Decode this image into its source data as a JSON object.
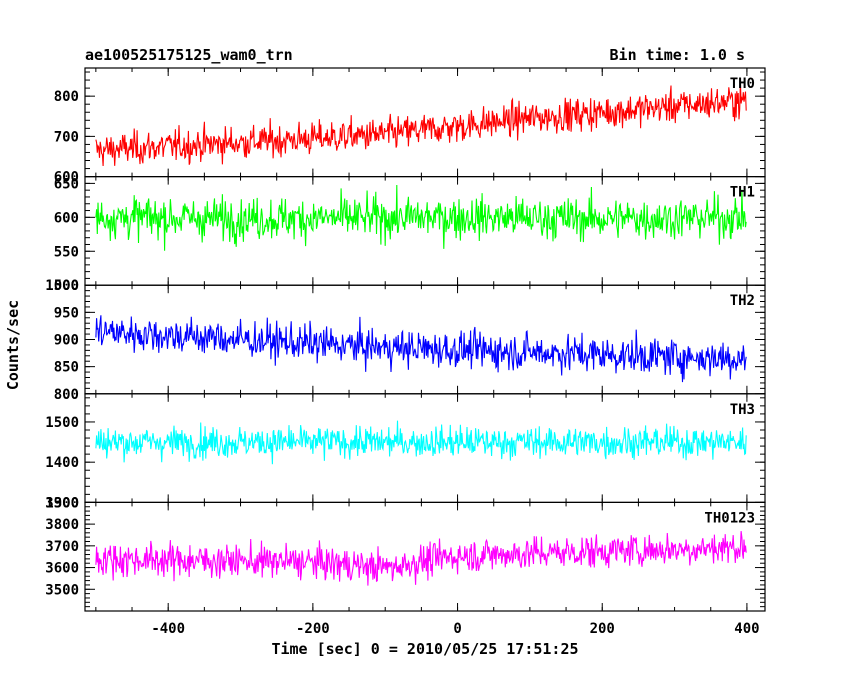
{
  "header": {
    "left_title": "ae100525175125_wam0_trn",
    "right_title": "Bin time: 1.0 s"
  },
  "chart_data": {
    "type": "line",
    "title": "ae100525175125_wam0_trn",
    "bin_time_label": "Bin time: 1.0 s",
    "xlabel": "Time [sec] 0 = 2010/05/25 17:51:25",
    "ylabel": "Counts/sec",
    "xlim": [
      -515,
      425
    ],
    "x_range": [
      -500,
      399
    ],
    "x_ticks": [
      -400,
      -200,
      0,
      200,
      400
    ],
    "grid": false,
    "legend": "none",
    "panels": [
      {
        "name": "TH0",
        "color": "#ff0000",
        "ylim": [
          600,
          870
        ],
        "yticks": [
          600,
          700,
          800
        ],
        "trend": [
          [
            -500,
            665
          ],
          [
            -300,
            685
          ],
          [
            -100,
            705
          ],
          [
            100,
            745
          ],
          [
            300,
            775
          ],
          [
            399,
            790
          ]
        ],
        "scatter": 40
      },
      {
        "name": "TH1",
        "color": "#00ff00",
        "ylim": [
          500,
          660
        ],
        "yticks": [
          500,
          550,
          600,
          650
        ],
        "trend": [
          [
            -500,
            600
          ],
          [
            -300,
            598
          ],
          [
            0,
            600
          ],
          [
            200,
            598
          ],
          [
            399,
            600
          ]
        ],
        "scatter": 30
      },
      {
        "name": "TH2",
        "color": "#0000ff",
        "ylim": [
          800,
          1000
        ],
        "yticks": [
          800,
          850,
          900,
          950,
          1000
        ],
        "trend": [
          [
            -500,
            915
          ],
          [
            -300,
            900
          ],
          [
            -100,
            885
          ],
          [
            100,
            877
          ],
          [
            300,
            868
          ],
          [
            399,
            865
          ]
        ],
        "scatter": 33
      },
      {
        "name": "TH3",
        "color": "#00ffff",
        "ylim": [
          1300,
          1570
        ],
        "yticks": [
          1300,
          1400,
          1500
        ],
        "trend": [
          [
            -500,
            1450
          ],
          [
            0,
            1450
          ],
          [
            399,
            1450
          ]
        ],
        "scatter": 38
      },
      {
        "name": "TH0123",
        "color": "#ff00ff",
        "ylim": [
          3400,
          3900
        ],
        "yticks": [
          3500,
          3600,
          3700,
          3800,
          3900
        ],
        "trend": [
          [
            -500,
            3640
          ],
          [
            -200,
            3625
          ],
          [
            -100,
            3600
          ],
          [
            0,
            3655
          ],
          [
            200,
            3675
          ],
          [
            399,
            3695
          ]
        ],
        "scatter": 75
      }
    ]
  }
}
